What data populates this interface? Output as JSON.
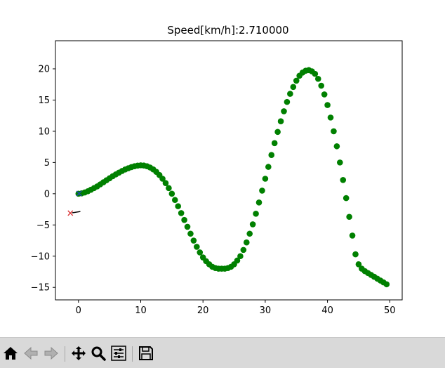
{
  "chart_data": {
    "type": "scatter",
    "title": "Speed[km/h]:2.710000",
    "xlabel": "",
    "ylabel": "",
    "xlim": [
      -3.7,
      52
    ],
    "ylim": [
      -17,
      24.5
    ],
    "xticks": [
      0,
      10,
      20,
      30,
      40,
      50
    ],
    "yticks": [
      -15,
      -10,
      -5,
      0,
      5,
      10,
      15,
      20
    ],
    "xtick_labels": [
      "0",
      "10",
      "20",
      "30",
      "40",
      "50"
    ],
    "ytick_labels": [
      "−15",
      "−10",
      "−5",
      "0",
      "5",
      "10",
      "15",
      "20"
    ],
    "grid": false,
    "legend": "none",
    "series": [
      {
        "marker": "circle",
        "color": "#008000",
        "x": [
          0,
          0.5,
          1,
          1.5,
          2,
          2.5,
          3,
          3.5,
          4,
          4.5,
          5,
          5.5,
          6,
          6.5,
          7,
          7.5,
          8,
          8.5,
          9,
          9.5,
          10,
          10.5,
          11,
          11.5,
          12,
          12.5,
          13,
          13.5,
          14,
          14.5,
          15,
          15.5,
          16,
          16.5,
          17,
          17.5,
          18,
          18.5,
          19,
          19.5,
          20,
          20.5,
          21,
          21.5,
          22,
          22.5,
          23,
          23.5,
          24,
          24.5,
          25,
          25.5,
          26,
          26.5,
          27,
          27.5,
          28,
          28.5,
          29,
          29.5,
          30,
          30.5,
          31,
          31.5,
          32,
          32.5,
          33,
          33.5,
          34,
          34.5,
          35,
          35.5,
          36,
          36.5,
          37,
          37.5,
          38,
          38.5,
          39,
          39.5,
          40,
          40.5,
          41,
          41.5,
          42,
          42.5,
          43,
          43.5,
          44,
          44.5,
          45,
          45.5,
          46,
          46.5,
          47,
          47.5,
          48,
          48.5,
          49,
          49.5
        ],
        "y": [
          0,
          0.06,
          0.2,
          0.4,
          0.64,
          0.9,
          1.17,
          1.5,
          1.83,
          2.16,
          2.48,
          2.8,
          3.1,
          3.38,
          3.64,
          3.88,
          4.08,
          4.26,
          4.4,
          4.5,
          4.55,
          4.52,
          4.4,
          4.2,
          3.9,
          3.5,
          3.0,
          2.4,
          1.7,
          0.9,
          0.0,
          -1.0,
          -2.0,
          -3.1,
          -4.2,
          -5.3,
          -6.4,
          -7.5,
          -8.5,
          -9.4,
          -10.2,
          -10.8,
          -11.3,
          -11.7,
          -11.9,
          -12.0,
          -12.0,
          -12.0,
          -11.9,
          -11.7,
          -11.3,
          -10.7,
          -10.0,
          -9.0,
          -7.8,
          -6.4,
          -4.9,
          -3.2,
          -1.4,
          0.5,
          2.4,
          4.3,
          6.2,
          8.1,
          9.9,
          11.6,
          13.2,
          14.7,
          16.0,
          17.1,
          18.1,
          18.9,
          19.4,
          19.7,
          19.8,
          19.6,
          19.2,
          18.4,
          17.3,
          15.9,
          14.2,
          12.2,
          10.0,
          7.6,
          5.0,
          2.2,
          -0.7,
          -3.7,
          -6.7,
          -9.7,
          -11.3,
          -12.0,
          -12.4,
          -12.7,
          -13.0,
          -13.3,
          -13.6,
          -13.9,
          -14.2,
          -14.5
        ]
      }
    ],
    "markers": [
      {
        "marker": "x",
        "color": "#d62728",
        "x": [
          -1.3
        ],
        "y": [
          -3.1
        ]
      },
      {
        "marker": "x",
        "color": "#1f3fbf",
        "x": [
          0.1
        ],
        "y": [
          0.05
        ]
      }
    ],
    "lines": [
      {
        "color": "#000000",
        "x": [
          -1.0,
          0.3
        ],
        "y": [
          -3.05,
          -2.85
        ]
      }
    ]
  },
  "toolbar": {
    "icons": [
      "home-icon",
      "back-arrow-icon",
      "forward-arrow-icon",
      "pan-icon",
      "zoom-icon",
      "configure-subplots-icon",
      "save-icon"
    ]
  }
}
